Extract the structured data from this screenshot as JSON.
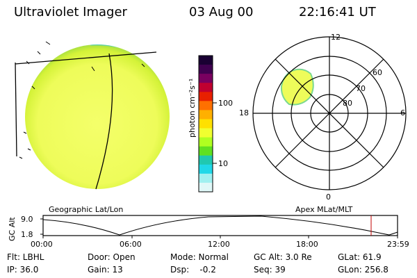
{
  "header": {
    "title": "Ultraviolet Imager",
    "date": "03 Aug 00",
    "time": "22:16:41 UT"
  },
  "colorbar": {
    "unit_label": "photon cm⁻²s⁻¹",
    "ticks": [
      "100",
      "10"
    ],
    "colors": [
      "#1a0033",
      "#400050",
      "#7a0060",
      "#c00030",
      "#e82000",
      "#ff7000",
      "#ffb000",
      "#ffe000",
      "#f0ff30",
      "#b0ff20",
      "#60e020",
      "#20c8b0",
      "#20d8e8",
      "#a0f0f0",
      "#e0f8f8"
    ]
  },
  "left_panel": {
    "caption": "Geographic Lat/Lon"
  },
  "right_panel": {
    "caption": "Apex MLat/MLT",
    "mlt_labels": {
      "top": "12",
      "bottom": "0",
      "left": "18",
      "right": "6"
    },
    "lat_labels": [
      "60",
      "70",
      "80"
    ]
  },
  "altitude_plot": {
    "ylabel": "GC Alt",
    "y_ticks": [
      "9.0",
      "1.8"
    ],
    "x_ticks": [
      "00:00",
      "06:00",
      "12:00",
      "18:00",
      "23:59"
    ]
  },
  "info": {
    "row1": [
      "Flt: LBHL",
      "Door: Open",
      "Mode: Normal",
      "GC Alt: 3.0 Re",
      "GLat:  61.9"
    ],
    "row2": [
      "IP: 36.0",
      "Gain: 13",
      "Dsp:    -0.2",
      "Seq: 39",
      "GLon: 256.8"
    ]
  }
}
